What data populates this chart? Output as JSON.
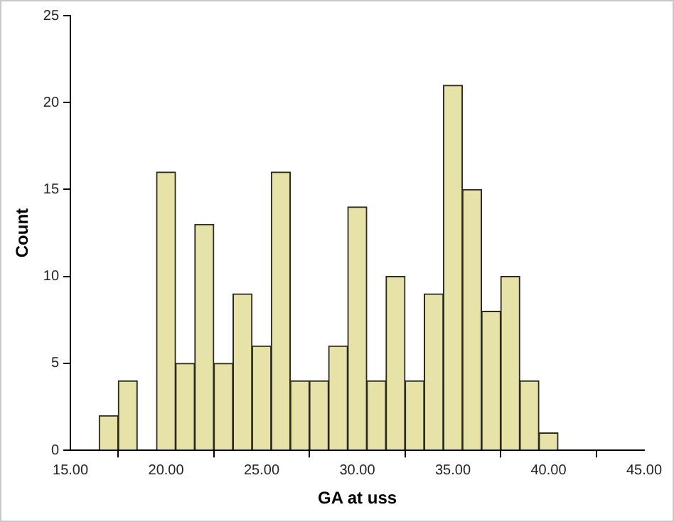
{
  "chart_data": {
    "type": "histogram",
    "xlabel": "GA at uss",
    "ylabel": "Count",
    "bins": [
      16.5,
      17.5,
      18.5,
      19.5,
      20.5,
      21.5,
      22.5,
      23.5,
      24.5,
      25.5,
      26.5,
      27.5,
      28.5,
      29.5,
      30.5,
      31.5,
      32.5,
      33.5,
      34.5,
      35.5,
      36.5,
      37.5,
      38.5,
      39.5,
      40.5
    ],
    "values": [
      2,
      4,
      0,
      16,
      5,
      13,
      5,
      9,
      6,
      16,
      4,
      4,
      6,
      14,
      4,
      10,
      4,
      9,
      21,
      15,
      8,
      10,
      4,
      1
    ],
    "color": "#e6e2a8",
    "xlim": [
      15,
      45
    ],
    "xticks": [
      {
        "value": 15,
        "label": "15.00"
      },
      {
        "value": 20,
        "label": "20.00"
      },
      {
        "value": 25,
        "label": "25.00"
      },
      {
        "value": 30,
        "label": "30.00"
      },
      {
        "value": 35,
        "label": "35.00"
      },
      {
        "value": 40,
        "label": "40.00"
      },
      {
        "value": 45,
        "label": "45.00"
      }
    ],
    "ylim": [
      0,
      25
    ],
    "yticks": [
      0,
      5,
      10,
      15,
      20,
      25
    ],
    "grid": false,
    "legend": false
  }
}
